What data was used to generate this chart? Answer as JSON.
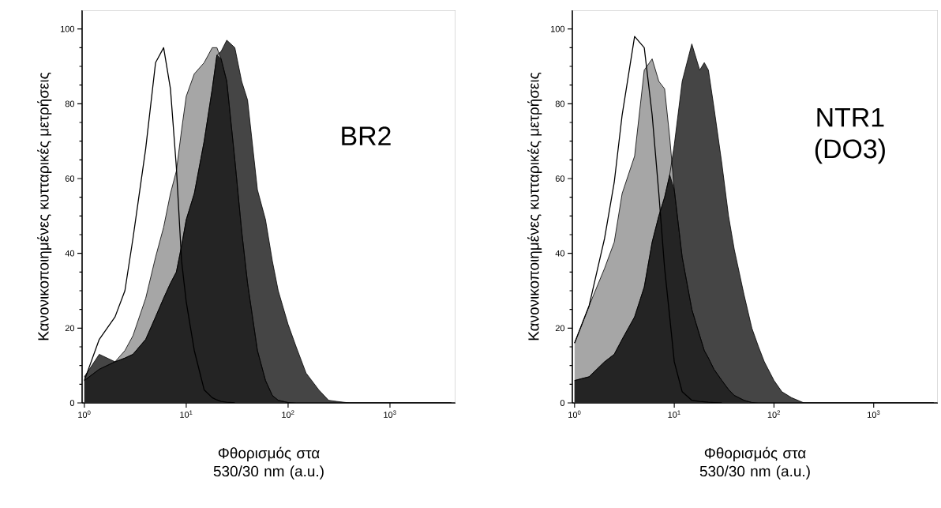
{
  "chart_data": [
    {
      "type": "area",
      "xlabel": "Φθορισμός στα 530/30 nm (a.u.)",
      "ylabel": "Κανονικοποιημένες κυτταρικές μετρήσεις",
      "annotations": [
        "BR2"
      ],
      "log": "x",
      "xlim": [
        0.95,
        4400
      ],
      "ylim": [
        0,
        105
      ],
      "xticks": [
        {
          "value": 1,
          "label": "10$^{0}$"
        },
        {
          "value": 10,
          "label": "10$^{1}$"
        },
        {
          "value": 100,
          "label": "10$^{2}$"
        },
        {
          "value": 1000,
          "label": "10$^{3}$"
        }
      ],
      "yticks": [
        0,
        20,
        40,
        60,
        80,
        100
      ],
      "marker": "none",
      "x": [
        1,
        1.4,
        2,
        2.5,
        3,
        4,
        5,
        6,
        7,
        8,
        9,
        10,
        12,
        15,
        18,
        20,
        22,
        25,
        30,
        35,
        40,
        50,
        60,
        70,
        80,
        100,
        120,
        150,
        200,
        250,
        300,
        400,
        1000,
        4000
      ],
      "series": [
        {
          "color": "#454545",
          "values": [
            7,
            13,
            11,
            12,
            13,
            17,
            23,
            28,
            32,
            35,
            42,
            49,
            56,
            70,
            84,
            93,
            94,
            97,
            95,
            86,
            81,
            57,
            49,
            38,
            30,
            21,
            15,
            8,
            3.5,
            0.7,
            0.4,
            0,
            0,
            0
          ]
        },
        {
          "color": "#a6a6a6",
          "values": [
            6,
            9,
            11,
            14,
            18,
            28,
            39,
            47,
            56,
            62,
            73,
            82,
            88,
            91,
            95,
            95,
            92,
            86,
            65,
            46,
            32,
            14,
            6,
            2,
            0.7,
            0.1,
            0,
            0,
            0,
            0,
            0,
            0,
            0,
            0
          ]
        },
        {
          "color": "#242424",
          "values": [
            6,
            9,
            11,
            12,
            13,
            17,
            23,
            28,
            32,
            35,
            42,
            49,
            56,
            70,
            84,
            93,
            92,
            86,
            65,
            46,
            32,
            14,
            6,
            2,
            0.7,
            0.1,
            0,
            0,
            0,
            0,
            0,
            0,
            0,
            0
          ]
        },
        {
          "type": "line",
          "color": "#000000",
          "values": [
            6,
            17,
            23,
            30,
            44,
            68,
            91,
            95,
            84,
            63,
            38,
            27,
            14,
            3.5,
            1.4,
            0.8,
            0.4,
            0.2,
            0,
            null,
            null,
            null,
            null,
            null,
            null,
            null,
            null,
            null,
            null,
            null,
            null,
            null,
            null,
            null
          ]
        }
      ]
    },
    {
      "type": "area",
      "xlabel": "Φθορισμός στα 530/30 nm (a.u.)",
      "ylabel": "Κανονικοποιημένες κυτταρικές μετρήσεις",
      "annotations": [
        "NTR1 (DO3)"
      ],
      "log": "x",
      "xlim": [
        0.95,
        4400
      ],
      "ylim": [
        0,
        105
      ],
      "xticks": [
        {
          "value": 1,
          "label": "10$^{0}$"
        },
        {
          "value": 10,
          "label": "10$^{1}$"
        },
        {
          "value": 100,
          "label": "10$^{2}$"
        },
        {
          "value": 1000,
          "label": "10$^{3}$"
        }
      ],
      "yticks": [
        0,
        20,
        40,
        60,
        80,
        100
      ],
      "marker": "none",
      "x": [
        1,
        1.4,
        2,
        2.5,
        3,
        4,
        5,
        6,
        7,
        8,
        9,
        10,
        12,
        15,
        18,
        20,
        22,
        25,
        30,
        35,
        40,
        50,
        60,
        70,
        80,
        100,
        120,
        150,
        200,
        250,
        300,
        400,
        1000,
        4000
      ],
      "series": [
        {
          "color": "#454545",
          "values": [
            6,
            7,
            11,
            13,
            17,
            23,
            31,
            43,
            50,
            55,
            61,
            69,
            86,
            96,
            89,
            91,
            89,
            79,
            64,
            50,
            41,
            29,
            20,
            15,
            11,
            6,
            3,
            1.4,
            0,
            0,
            0,
            0,
            0,
            0
          ]
        },
        {
          "color": "#a6a6a6",
          "values": [
            16,
            26,
            36,
            43,
            56,
            66,
            89,
            92,
            86,
            84,
            71,
            57,
            39,
            25,
            18,
            14,
            12,
            9,
            6,
            3.6,
            2,
            0.7,
            0.1,
            0,
            0,
            0,
            0,
            0,
            0,
            0,
            0,
            0,
            0,
            0
          ]
        },
        {
          "color": "#242424",
          "values": [
            6,
            7,
            11,
            13,
            17,
            23,
            31,
            43,
            50,
            55,
            61,
            57,
            39,
            25,
            18,
            14,
            12,
            9,
            6,
            3.6,
            2,
            0.7,
            0.1,
            0,
            0,
            0,
            0,
            0,
            0,
            0,
            0,
            0,
            0,
            0
          ]
        },
        {
          "type": "line",
          "color": "#000000",
          "values": [
            16,
            26,
            44,
            59,
            77,
            98,
            95,
            77,
            56,
            36,
            23,
            11,
            3,
            0.7,
            0.4,
            0.3,
            0.2,
            0.1,
            0,
            null,
            null,
            null,
            null,
            null,
            null,
            null,
            null,
            null,
            null,
            null,
            null,
            null,
            null,
            null
          ]
        }
      ]
    }
  ]
}
